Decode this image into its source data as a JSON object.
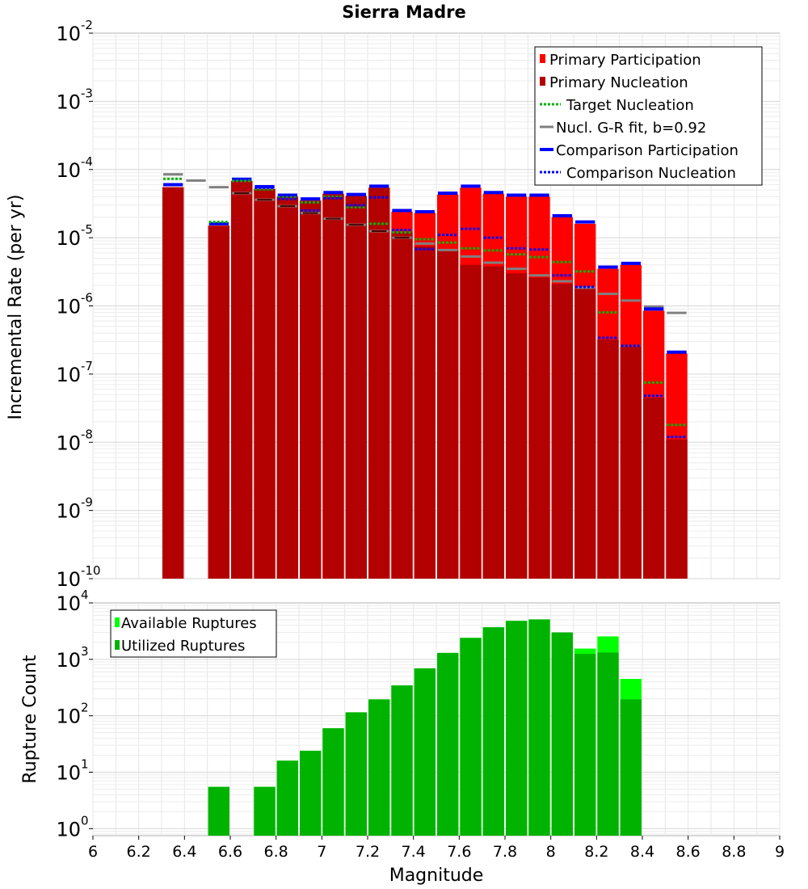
{
  "chart_data": [
    {
      "type": "bar",
      "title": "Sierra Madre",
      "ylabel": "Incremental Rate (per yr)",
      "yscale": "log",
      "ylim": [
        1e-10,
        0.01
      ],
      "xlim": [
        6,
        9
      ],
      "bin_width": 0.1,
      "grid": true,
      "y_ticks": [
        {
          "base": "10",
          "exp": "-2",
          "value": 0.01
        },
        {
          "base": "10",
          "exp": "-3",
          "value": 0.001
        },
        {
          "base": "10",
          "exp": "-4",
          "value": 0.0001
        },
        {
          "base": "10",
          "exp": "-5",
          "value": 1e-05
        },
        {
          "base": "10",
          "exp": "-6",
          "value": 1e-06
        },
        {
          "base": "10",
          "exp": "-7",
          "value": 1e-07
        },
        {
          "base": "10",
          "exp": "-8",
          "value": 1e-08
        },
        {
          "base": "10",
          "exp": "-9",
          "value": 1e-09
        },
        {
          "base": "10",
          "exp": "-10",
          "value": 1e-10
        }
      ],
      "legend_position": "top-right",
      "legend": [
        {
          "label": "Primary Participation",
          "color": "#ff0000",
          "style": "bar"
        },
        {
          "label": "Primary Nucleation",
          "color": "#b30000",
          "style": "bar"
        },
        {
          "label": "Target Nucleation",
          "color": "#00b300",
          "style": "dotted"
        },
        {
          "label": "Nucl. G-R fit, b=0.92",
          "color": "#808080",
          "style": "line"
        },
        {
          "label": "Comparison Participation",
          "color": "#0000ff",
          "style": "line"
        },
        {
          "label": "Comparison Nucleation",
          "color": "#0000ff",
          "style": "dotted"
        }
      ],
      "magnitudes": [
        6.35,
        6.45,
        6.55,
        6.65,
        6.75,
        6.85,
        6.95,
        7.05,
        7.15,
        7.25,
        7.35,
        7.45,
        7.55,
        7.65,
        7.75,
        7.85,
        7.95,
        8.05,
        8.15,
        8.25,
        8.35,
        8.45,
        8.55
      ],
      "series": [
        {
          "name": "Primary Participation",
          "values": [
            5.5e-05,
            null,
            1.5e-05,
            6.8e-05,
            5.2e-05,
            4e-05,
            3.5e-05,
            4.4e-05,
            4.1e-05,
            5.4e-05,
            2.4e-05,
            2.3e-05,
            4.3e-05,
            5.4e-05,
            4.4e-05,
            4e-05,
            4e-05,
            2e-05,
            1.6e-05,
            3.5e-06,
            4e-06,
            8.5e-07,
            2e-07
          ]
        },
        {
          "name": "Primary Nucleation",
          "values": [
            5.5e-05,
            null,
            1.5e-05,
            6.8e-05,
            5.2e-05,
            4e-05,
            3.5e-05,
            4.4e-05,
            4.1e-05,
            5.4e-05,
            1.2e-05,
            7.5e-06,
            6.5e-06,
            4e-06,
            3.8e-06,
            3e-06,
            2.6e-06,
            2.1e-06,
            1.8e-06,
            3.2e-07,
            2.5e-07,
            4.5e-08,
            1.1e-08
          ]
        },
        {
          "name": "Target Nucleation",
          "values": [
            7.3e-05,
            null,
            1.7e-05,
            6.8e-05,
            5.1e-05,
            3.9e-05,
            3.3e-05,
            4e-05,
            2.8e-05,
            1.6e-05,
            1.2e-05,
            9.5e-06,
            8.5e-06,
            7e-06,
            6.5e-06,
            5.7e-06,
            5.2e-06,
            4.4e-06,
            3.2e-06,
            8e-07,
            2.6e-07,
            7.5e-08,
            1.8e-08
          ]
        },
        {
          "name": "Nucl. G-R fit, b=0.92",
          "values": [
            8.5e-05,
            6.9e-05,
            5.5e-05,
            4.5e-05,
            3.6e-05,
            2.9e-05,
            2.3e-05,
            1.9e-05,
            1.55e-05,
            1.25e-05,
            1e-05,
            8.2e-06,
            6.6e-06,
            5.3e-06,
            4.3e-06,
            3.5e-06,
            2.8e-06,
            2.3e-06,
            1.85e-06,
            1.5e-06,
            1.2e-06,
            9.8e-07,
            7.9e-07
          ]
        },
        {
          "name": "Comparison Participation",
          "values": [
            6e-05,
            null,
            1.6e-05,
            7.2e-05,
            5.6e-05,
            4.2e-05,
            3.7e-05,
            4.6e-05,
            4.3e-05,
            5.7e-05,
            2.5e-05,
            2.4e-05,
            4.5e-05,
            5.7e-05,
            4.6e-05,
            4.2e-05,
            4.2e-05,
            2.1e-05,
            1.7e-05,
            3.7e-06,
            4.2e-06,
            9e-07,
            2.1e-07
          ]
        },
        {
          "name": "Comparison Nucleation",
          "values": [
            null,
            null,
            null,
            null,
            5.4e-05,
            3.7e-05,
            2.5e-05,
            3.8e-05,
            3e-05,
            3.9e-05,
            1.3e-05,
            6.8e-06,
            1.1e-05,
            1.35e-05,
            1e-05,
            7e-06,
            6.7e-06,
            2.8e-06,
            1.9e-06,
            3.4e-07,
            2.6e-07,
            4.8e-08,
            1.2e-08
          ]
        }
      ]
    },
    {
      "type": "bar",
      "xlabel": "Magnitude",
      "ylabel": "Rupture Count",
      "yscale": "log",
      "ylim": [
        0.75,
        10000
      ],
      "xlim": [
        6,
        9
      ],
      "bin_width": 0.1,
      "grid": true,
      "x_ticks": [
        "6",
        "6.2",
        "6.4",
        "6.6",
        "6.8",
        "7",
        "7.2",
        "7.4",
        "7.6",
        "7.8",
        "8",
        "8.2",
        "8.4",
        "8.6",
        "8.8",
        "9"
      ],
      "x_tick_values": [
        6,
        6.2,
        6.4,
        6.6,
        6.8,
        7,
        7.2,
        7.4,
        7.6,
        7.8,
        8,
        8.2,
        8.4,
        8.6,
        8.8,
        9
      ],
      "y_ticks": [
        {
          "base": "10",
          "exp": "4",
          "value": 10000
        },
        {
          "base": "10",
          "exp": "3",
          "value": 1000
        },
        {
          "base": "10",
          "exp": "2",
          "value": 100
        },
        {
          "base": "10",
          "exp": "1",
          "value": 10
        },
        {
          "base": "10",
          "exp": "0",
          "value": 1
        }
      ],
      "legend_position": "top-left",
      "legend": [
        {
          "label": "Available Ruptures",
          "color": "#00ff00"
        },
        {
          "label": "Utilized Ruptures",
          "color": "#00b300"
        }
      ],
      "magnitudes": [
        6.55,
        6.75,
        6.85,
        6.95,
        7.05,
        7.15,
        7.25,
        7.35,
        7.45,
        7.55,
        7.65,
        7.75,
        7.85,
        7.95,
        8.05,
        8.15,
        8.25,
        8.35
      ],
      "series": [
        {
          "name": "Available Ruptures",
          "values": [
            5.5,
            5.5,
            16,
            24,
            60,
            115,
            195,
            345,
            690,
            1300,
            2400,
            3700,
            4800,
            5100,
            3000,
            1550,
            2550,
            450
          ]
        },
        {
          "name": "Utilized Ruptures",
          "values": [
            5.5,
            5.5,
            16,
            24,
            60,
            115,
            195,
            345,
            690,
            1300,
            2400,
            3700,
            4800,
            5100,
            3000,
            1250,
            1320,
            195
          ]
        }
      ]
    }
  ]
}
